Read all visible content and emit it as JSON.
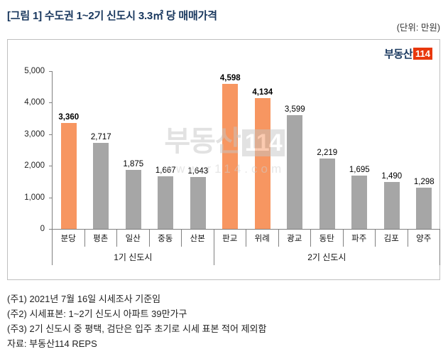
{
  "header": {
    "title": "[그림 1] 수도권 1~2기 신도시 3.3㎡ 당 매매가격",
    "unit": "(단위: 만원)"
  },
  "logo": {
    "text": "부동산",
    "badge": "114"
  },
  "watermark": {
    "line1_text": "부동산",
    "line1_badge": "114",
    "line2": "www.r114.com"
  },
  "chart_data": {
    "type": "bar",
    "title": "수도권 1~2기 신도시 3.3㎡ 당 매매가격",
    "unit": "만원",
    "categories": [
      "분당",
      "평촌",
      "일산",
      "중동",
      "산본",
      "판교",
      "위례",
      "광교",
      "동탄",
      "파주",
      "김포",
      "양주"
    ],
    "values": [
      3360,
      2717,
      1875,
      1667,
      1643,
      4598,
      4134,
      3599,
      2219,
      1695,
      1490,
      1298
    ],
    "value_labels": [
      "3,360",
      "2,717",
      "1,875",
      "1,667",
      "1,643",
      "4,598",
      "4,134",
      "3,599",
      "2,219",
      "1,695",
      "1,490",
      "1,298"
    ],
    "highlighted": [
      true,
      false,
      false,
      false,
      false,
      true,
      true,
      false,
      false,
      false,
      false,
      false
    ],
    "groups": [
      {
        "label": "1기 신도시",
        "span": 5
      },
      {
        "label": "2기 신도시",
        "span": 7
      }
    ],
    "ylim": [
      0,
      5000
    ],
    "ytick_labels": [
      "5,000",
      "4,000",
      "3,000",
      "2,000",
      "1,000",
      "0"
    ],
    "colors": {
      "highlight": "#F79661",
      "normal": "#A6A6A6"
    },
    "grid": false,
    "legend": false
  },
  "footnotes": [
    "(주1) 2021년 7월 16일 시세조사 기준임",
    "(주2) 시세표본: 1~2기 신도시 아파트 39만가구",
    "(주3) 2기 신도시 중 평택, 검단은 입주 초기로 시세 표본 적어 제외함",
    "자료: 부동산114 REPS"
  ]
}
